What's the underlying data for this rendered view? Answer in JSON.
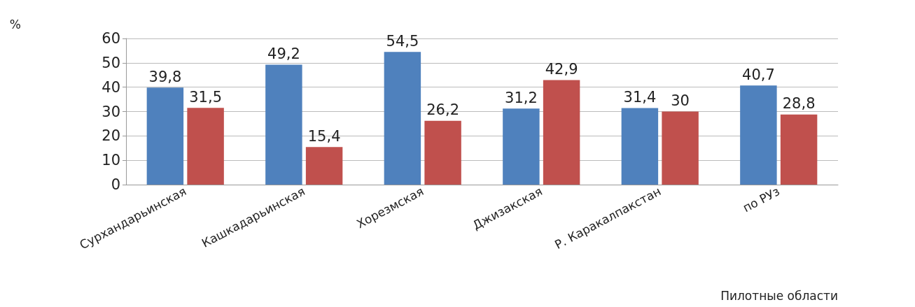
{
  "chart_data": {
    "type": "bar",
    "ylabel": "%",
    "xlabel": "Пилотные области",
    "categories": [
      "Сурхандарьинская",
      "Кашкадарьинская",
      "Хорезмская",
      "Джизакская",
      "Р. Каракалпакстан",
      "по РУз"
    ],
    "series": [
      {
        "color": "#4f81bd",
        "values": [
          39.8,
          49.2,
          54.5,
          31.2,
          31.4,
          40.7
        ],
        "value_labels": [
          "39,8",
          "49,2",
          "54,5",
          "31,2",
          "31,4",
          "40,7"
        ]
      },
      {
        "color": "#c0504d",
        "values": [
          31.5,
          15.4,
          26.2,
          42.9,
          30,
          28.8
        ],
        "value_labels": [
          "31,5",
          "15,4",
          "26,2",
          "42,9",
          "30",
          "28,8"
        ]
      }
    ],
    "ylim": [
      0,
      60
    ],
    "yticks": [
      0,
      10,
      20,
      30,
      40,
      50,
      60
    ],
    "grid": "y"
  }
}
